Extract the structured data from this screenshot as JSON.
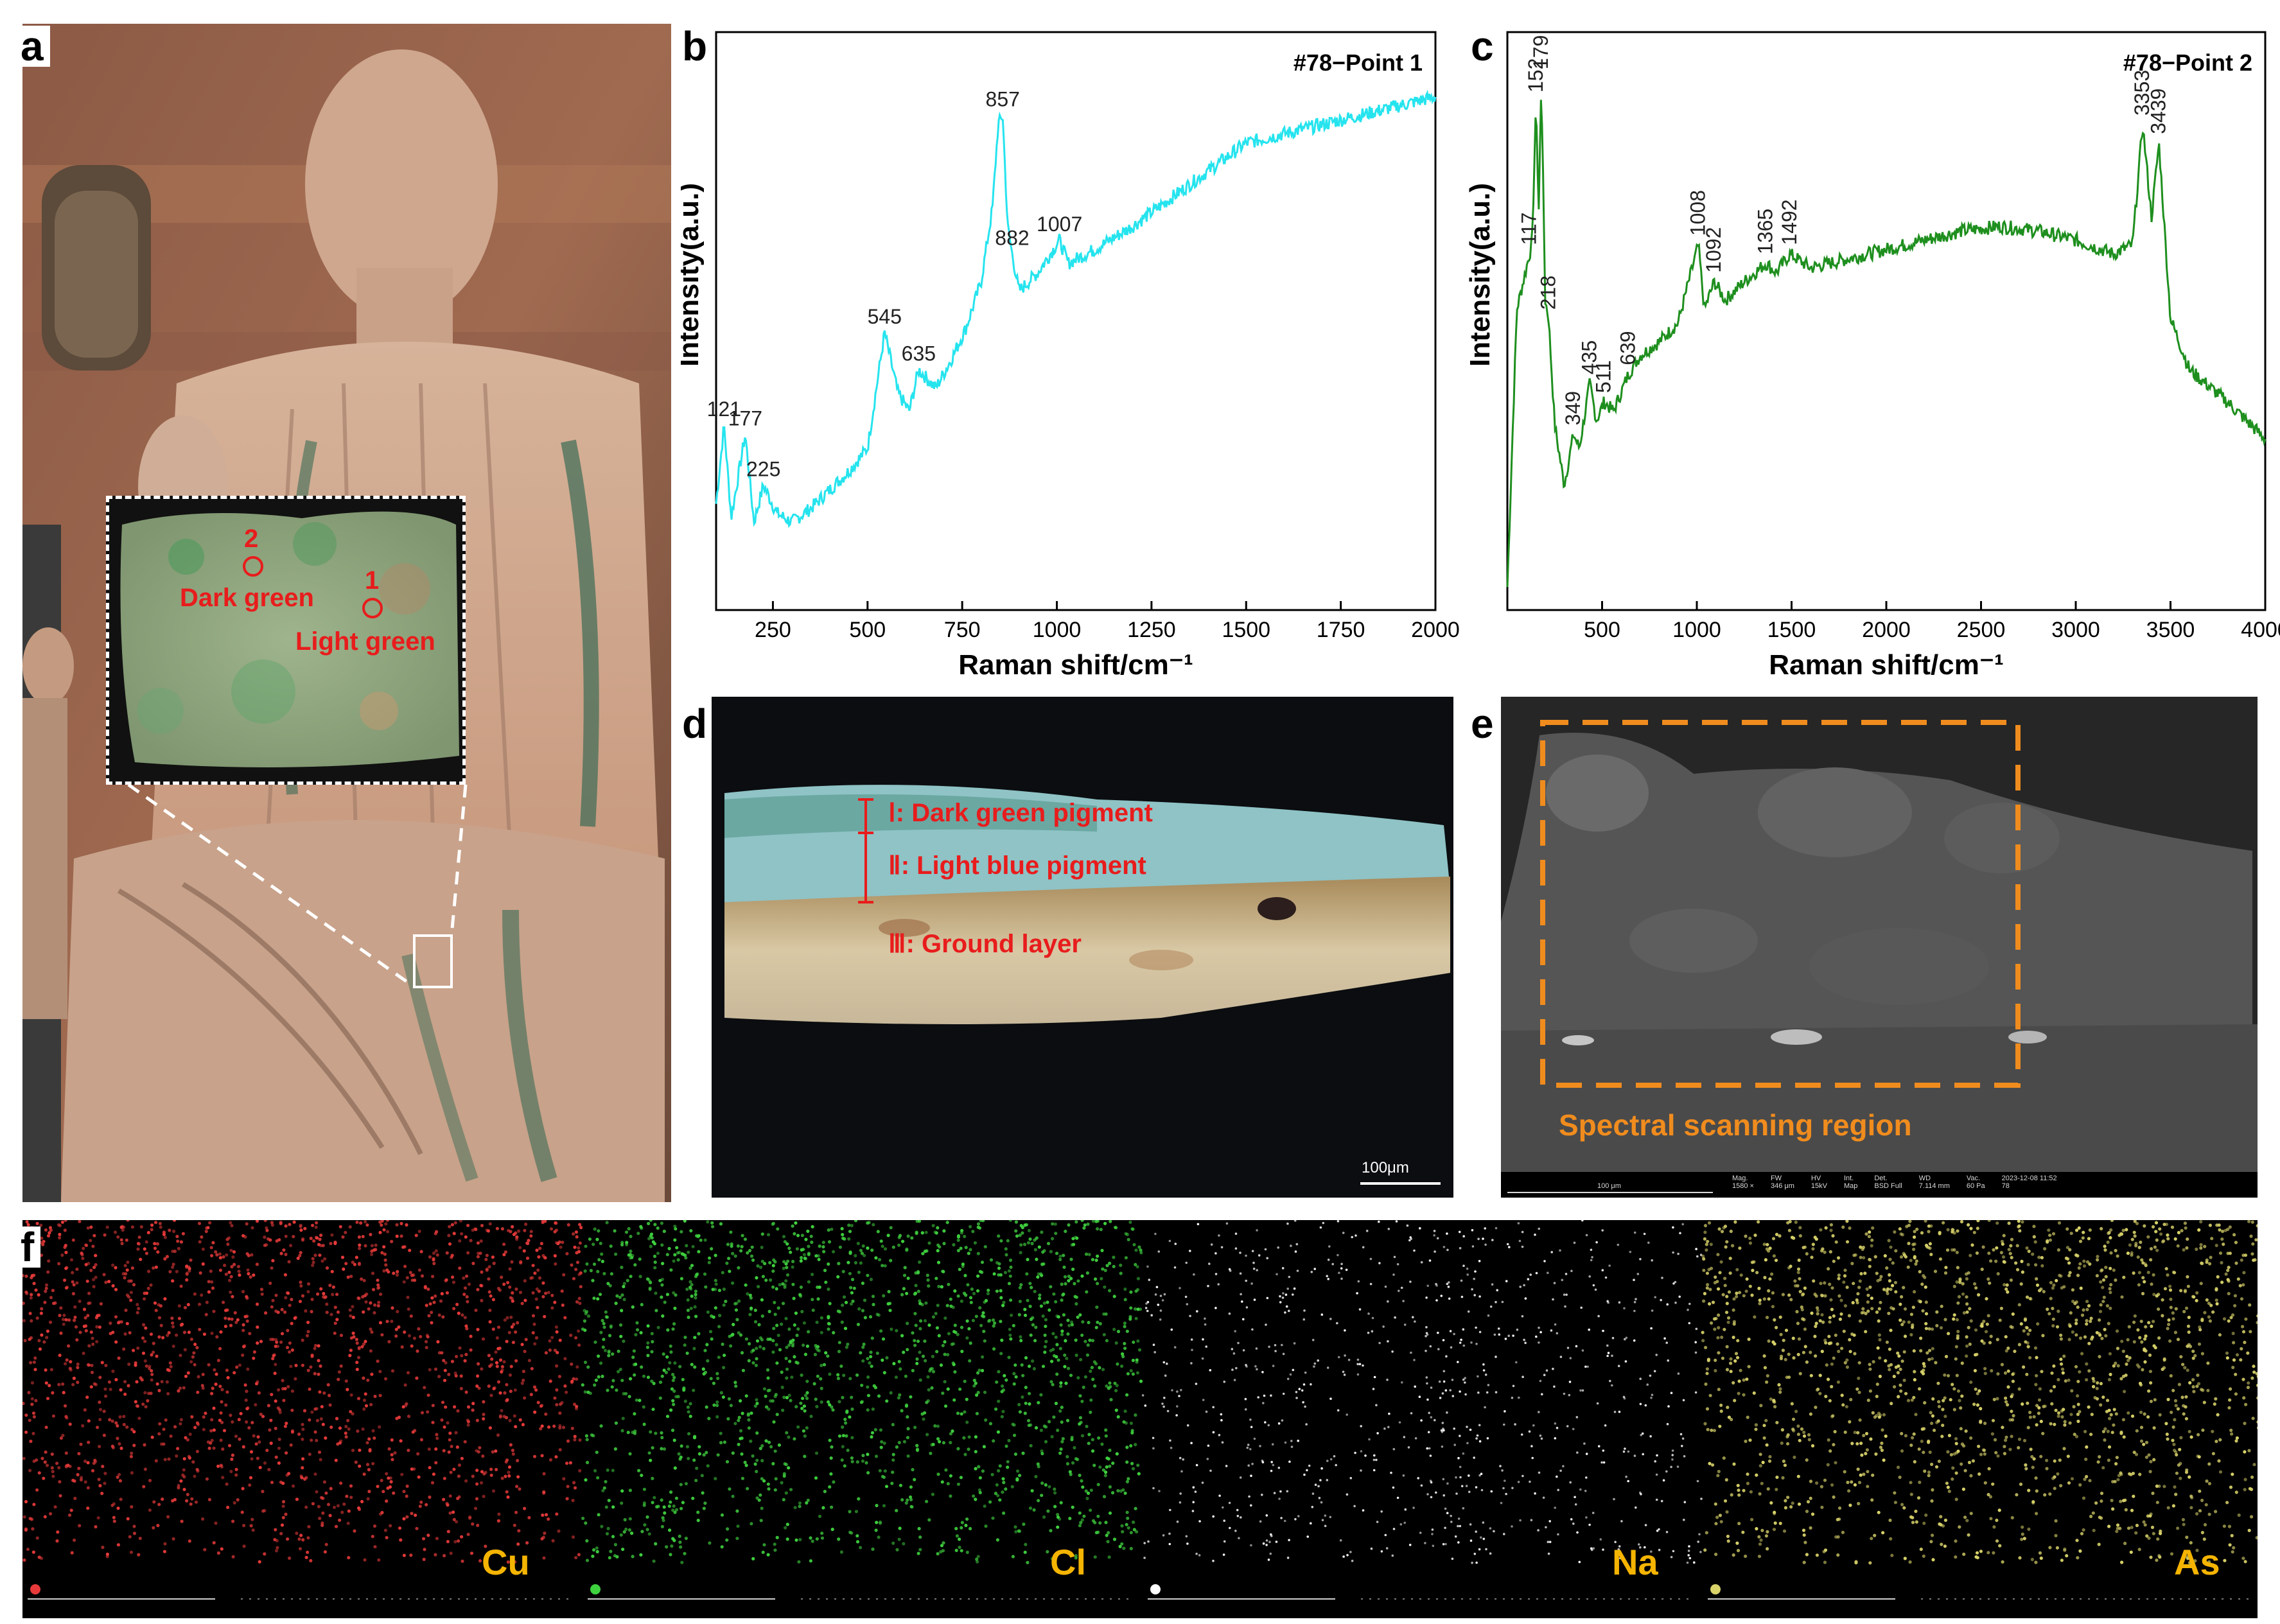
{
  "panels": {
    "a": {
      "letter": "a",
      "points": [
        {
          "number": "2",
          "label": "Dark green"
        },
        {
          "number": "1",
          "label": "Light green"
        }
      ]
    },
    "b": {
      "letter": "b"
    },
    "c": {
      "letter": "c"
    },
    "d": {
      "letter": "d",
      "layers": [
        "Ⅰ: Dark green pigment",
        "Ⅱ: Light blue pigment",
        "Ⅲ: Ground layer"
      ],
      "scale_bar": "100μm"
    },
    "e": {
      "letter": "e",
      "region_label": "Spectral scanning region",
      "footer_scale": "100 μm",
      "footer_fields": [
        "Mag.",
        "FW",
        "HV",
        "Int.",
        "Det.",
        "WD",
        "Vac."
      ],
      "footer_values": [
        "1580 ×",
        "346 μm",
        "15kV",
        "Map",
        "BSD Full",
        "7.114 mm",
        "60 Pa"
      ],
      "footer_timestamp": "2023-12-08 11:52",
      "footer_code": "78"
    },
    "f": {
      "letter": "f",
      "maps": [
        {
          "element": "Cu",
          "color": "#e83a3a"
        },
        {
          "element": "Cl",
          "color": "#3fd23f"
        },
        {
          "element": "Na",
          "color": "#ffffff"
        },
        {
          "element": "As",
          "color": "#d9d36a"
        }
      ]
    }
  },
  "chart_data": [
    {
      "type": "line",
      "panel": "b",
      "title": "#78−Point 1",
      "xlabel": "Raman shift/cm⁻¹",
      "ylabel": "Intensity(a.u.)",
      "xlim": [
        100,
        2000
      ],
      "xticks": [
        250,
        500,
        750,
        1000,
        1250,
        1500,
        1750,
        2000
      ],
      "yticks": [],
      "color": "#25e4ee",
      "peaks": [
        121,
        177,
        225,
        545,
        635,
        857,
        882,
        1007
      ],
      "series": [
        {
          "x": [
            100,
            121,
            140,
            177,
            200,
            225,
            260,
            300,
            350,
            400,
            450,
            500,
            545,
            580,
            610,
            635,
            680,
            720,
            760,
            800,
            830,
            845,
            857,
            870,
            882,
            900,
            950,
            1007,
            1030,
            1100,
            1200,
            1300,
            1400,
            1500,
            1600,
            1700,
            1800,
            1900,
            2000
          ],
          "y": [
            0.18,
            0.35,
            0.15,
            0.33,
            0.14,
            0.22,
            0.16,
            0.14,
            0.17,
            0.21,
            0.25,
            0.3,
            0.55,
            0.42,
            0.38,
            0.47,
            0.43,
            0.49,
            0.56,
            0.66,
            0.82,
            1.0,
            1.02,
            0.78,
            0.72,
            0.64,
            0.68,
            0.75,
            0.7,
            0.73,
            0.78,
            0.84,
            0.9,
            0.96,
            0.98,
            1.0,
            1.02,
            1.04,
            1.06
          ]
        }
      ]
    },
    {
      "type": "line",
      "panel": "c",
      "title": "#78−Point 2",
      "xlabel": "Raman shift/cm⁻¹",
      "ylabel": "Intensity(a.u.)",
      "xlim": [
        0,
        4000
      ],
      "xticks": [
        500,
        1000,
        1500,
        2000,
        2500,
        3000,
        3500,
        4000
      ],
      "yticks": [],
      "color": "#1e8f1e",
      "peaks": [
        117,
        152,
        179,
        218,
        349,
        435,
        511,
        639,
        1008,
        1092,
        1365,
        1492,
        3353,
        3439
      ],
      "series": [
        {
          "x": [
            0,
            50,
            117,
            130,
            152,
            165,
            179,
            200,
            218,
            250,
            300,
            349,
            380,
            435,
            470,
            511,
            560,
            639,
            700,
            800,
            900,
            1008,
            1040,
            1092,
            1150,
            1250,
            1365,
            1420,
            1492,
            1600,
            1800,
            2000,
            2200,
            2400,
            2600,
            2800,
            3000,
            3200,
            3300,
            3353,
            3400,
            3439,
            3500,
            3600,
            3800,
            4000
          ],
          "y": [
            0.0,
            0.6,
            0.72,
            0.74,
            1.05,
            0.8,
            1.1,
            0.62,
            0.58,
            0.35,
            0.22,
            0.33,
            0.3,
            0.44,
            0.36,
            0.4,
            0.38,
            0.46,
            0.5,
            0.53,
            0.57,
            0.74,
            0.6,
            0.66,
            0.62,
            0.66,
            0.7,
            0.68,
            0.72,
            0.69,
            0.71,
            0.73,
            0.75,
            0.77,
            0.78,
            0.77,
            0.75,
            0.72,
            0.74,
            1.0,
            0.8,
            0.96,
            0.58,
            0.47,
            0.4,
            0.32
          ]
        }
      ]
    }
  ]
}
